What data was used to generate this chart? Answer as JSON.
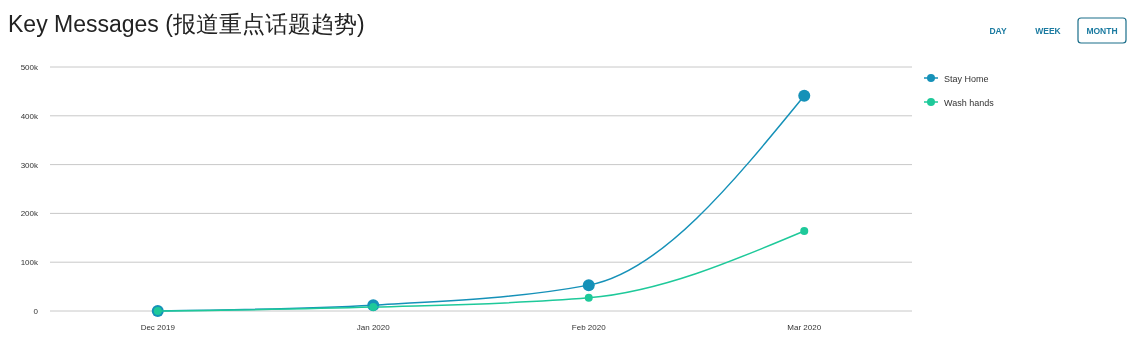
{
  "chart_data": {
    "type": "line",
    "title": "Key Messages (报道重点话题趋势)",
    "categories": [
      "Dec 2019",
      "Jan 2020",
      "Feb 2020",
      "Mar 2020"
    ],
    "series": [
      {
        "name": "Stay Home",
        "color": "#1591b8",
        "values": [
          0,
          12000,
          53000,
          441000
        ]
      },
      {
        "name": "Wash hands",
        "color": "#1ec99a",
        "values": [
          0,
          8000,
          27000,
          164000
        ]
      }
    ],
    "ylim": [
      0,
      500000
    ],
    "yticks": [
      {
        "value": 0,
        "label": "0"
      },
      {
        "value": 100000,
        "label": "100k"
      },
      {
        "value": 200000,
        "label": "200k"
      },
      {
        "value": 300000,
        "label": "300k"
      },
      {
        "value": 400000,
        "label": "400k"
      },
      {
        "value": 500000,
        "label": "500k"
      }
    ],
    "grid": "y",
    "legend": "right",
    "marker": "circle",
    "line_style": "solid",
    "annotations": [
      "DAY",
      "WEEK",
      "MONTH"
    ]
  }
}
